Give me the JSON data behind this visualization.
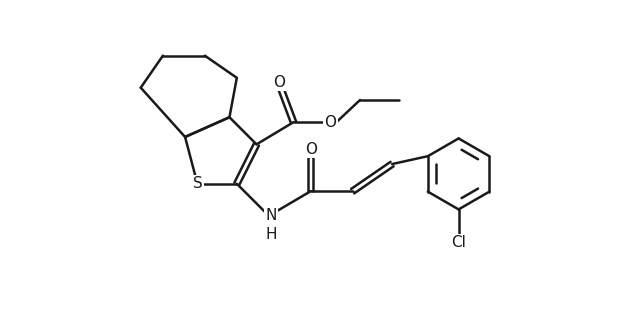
{
  "bg_color": "#ffffff",
  "line_color": "#1a1a1a",
  "line_width": 1.8,
  "figsize": [
    6.4,
    3.2
  ],
  "dpi": 100,
  "xlim": [
    0,
    10
  ],
  "ylim": [
    0,
    5
  ]
}
